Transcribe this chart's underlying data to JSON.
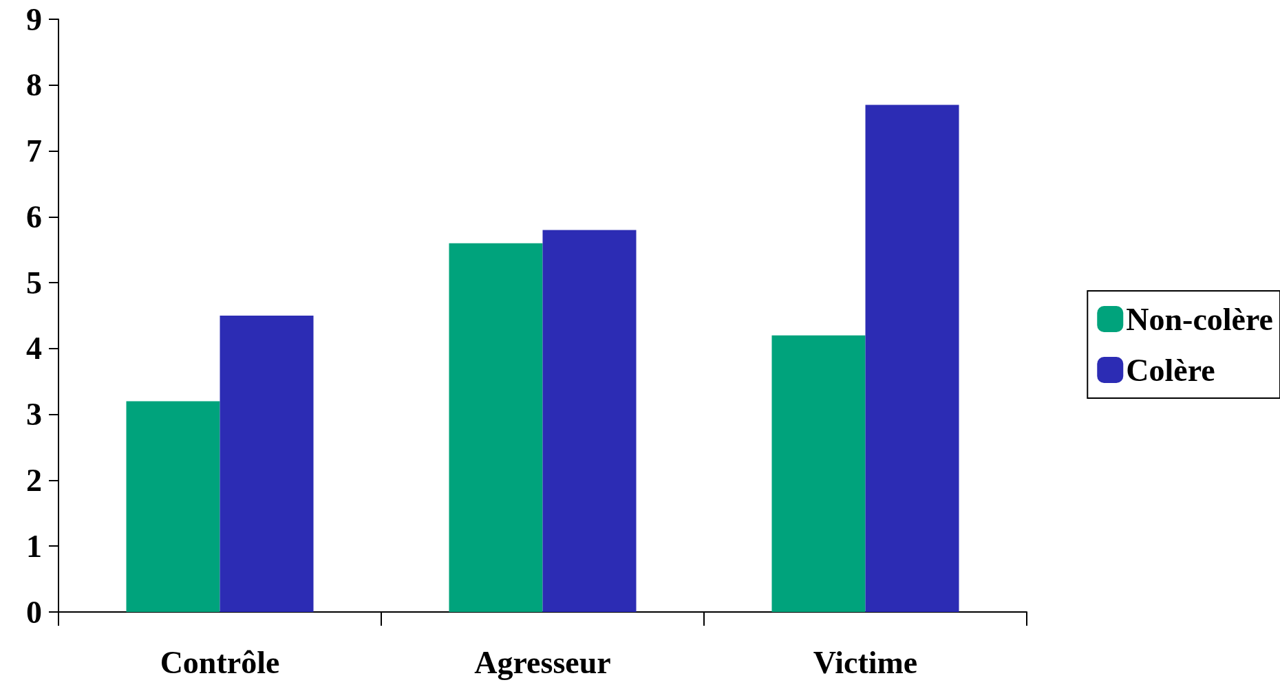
{
  "chart_data": {
    "type": "bar",
    "categories": [
      "Contrôle",
      "Agresseur",
      "Victime"
    ],
    "series": [
      {
        "name": "Non-colère",
        "color": "#00a37c",
        "values": [
          3.2,
          5.6,
          4.2
        ]
      },
      {
        "name": "Colère",
        "color": "#2c2cb4",
        "values": [
          4.5,
          5.8,
          7.7
        ]
      }
    ],
    "ylim": [
      0,
      9
    ],
    "yticks": [
      0,
      1,
      2,
      3,
      4,
      5,
      6,
      7,
      8,
      9
    ],
    "grid": false,
    "legend": "right"
  }
}
